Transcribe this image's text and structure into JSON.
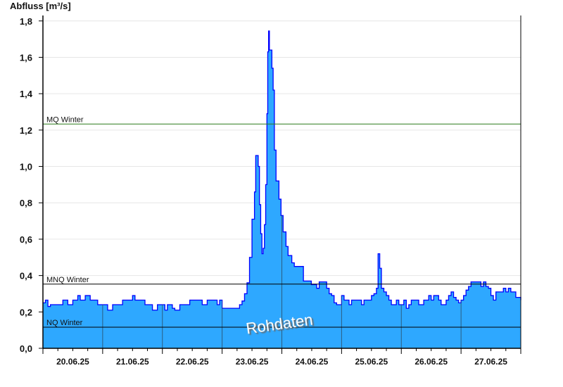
{
  "chart_data": {
    "type": "area",
    "step": true,
    "ylabel": "Abfluss [m³/s]",
    "ylim": [
      0,
      1.83
    ],
    "yticks": [
      "0,0",
      "0,2",
      "0,4",
      "0,6",
      "0,8",
      "1,0",
      "1,2",
      "1,4",
      "1,6",
      "1,8"
    ],
    "ytick_values": [
      0,
      0.2,
      0.4,
      0.6,
      0.8,
      1.0,
      1.2,
      1.4,
      1.6,
      1.8
    ],
    "xlim": [
      "2025-06-20T00:00",
      "2025-06-28T00:00"
    ],
    "xtick_labels": [
      "20.06.25",
      "21.06.25",
      "22.06.25",
      "23.06.25",
      "24.06.25",
      "25.06.25",
      "26.06.25",
      "27.06.25"
    ],
    "grid": true,
    "fill_color": "#2ea8ff",
    "line_color": "#0000ff",
    "watermark": "Rohdaten",
    "reference_lines": [
      {
        "label": "MQ Winter",
        "value": 1.233,
        "color": "#2a7a1a"
      },
      {
        "label": "MNQ Winter",
        "value": 0.353,
        "color": "#000000"
      },
      {
        "label": "NQ Winter",
        "value": 0.116,
        "color": "#000000"
      }
    ],
    "points": [
      [
        "2025-06-20T00:00",
        0.25
      ],
      [
        "2025-06-20T01:00",
        0.265
      ],
      [
        "2025-06-20T02:00",
        0.23
      ],
      [
        "2025-06-20T03:00",
        0.24
      ],
      [
        "2025-06-20T06:00",
        0.24
      ],
      [
        "2025-06-20T08:00",
        0.265
      ],
      [
        "2025-06-20T10:00",
        0.24
      ],
      [
        "2025-06-20T12:00",
        0.265
      ],
      [
        "2025-06-20T14:00",
        0.29
      ],
      [
        "2025-06-20T15:00",
        0.265
      ],
      [
        "2025-06-20T17:00",
        0.29
      ],
      [
        "2025-06-20T19:00",
        0.265
      ],
      [
        "2025-06-20T22:00",
        0.24
      ],
      [
        "2025-06-21T01:00",
        0.24
      ],
      [
        "2025-06-21T02:00",
        0.21
      ],
      [
        "2025-06-21T04:00",
        0.24
      ],
      [
        "2025-06-21T08:00",
        0.265
      ],
      [
        "2025-06-21T12:00",
        0.29
      ],
      [
        "2025-06-21T13:00",
        0.265
      ],
      [
        "2025-06-21T17:00",
        0.24
      ],
      [
        "2025-06-21T20:00",
        0.21
      ],
      [
        "2025-06-21T22:00",
        0.24
      ],
      [
        "2025-06-22T01:00",
        0.21
      ],
      [
        "2025-06-22T02:00",
        0.24
      ],
      [
        "2025-06-22T04:00",
        0.22
      ],
      [
        "2025-06-22T05:00",
        0.21
      ],
      [
        "2025-06-22T07:00",
        0.24
      ],
      [
        "2025-06-22T11:00",
        0.265
      ],
      [
        "2025-06-22T16:00",
        0.24
      ],
      [
        "2025-06-22T18:00",
        0.265
      ],
      [
        "2025-06-22T22:00",
        0.24
      ],
      [
        "2025-06-22T23:00",
        0.265
      ],
      [
        "2025-06-23T00:00",
        0.22
      ],
      [
        "2025-06-23T07:00",
        0.24
      ],
      [
        "2025-06-23T08:00",
        0.26
      ],
      [
        "2025-06-23T09:00",
        0.3
      ],
      [
        "2025-06-23T10:00",
        0.36
      ],
      [
        "2025-06-23T11:00",
        0.5
      ],
      [
        "2025-06-23T12:00",
        0.71
      ],
      [
        "2025-06-23T13:00",
        0.86
      ],
      [
        "2025-06-23T13:30",
        1.06
      ],
      [
        "2025-06-23T14:30",
        1.0
      ],
      [
        "2025-06-23T15:00",
        0.79
      ],
      [
        "2025-06-23T15:30",
        0.63
      ],
      [
        "2025-06-23T16:00",
        0.52
      ],
      [
        "2025-06-23T16:30",
        0.55
      ],
      [
        "2025-06-23T17:00",
        0.68
      ],
      [
        "2025-06-23T17:30",
        0.9
      ],
      [
        "2025-06-23T18:00",
        1.29
      ],
      [
        "2025-06-23T18:20",
        1.63
      ],
      [
        "2025-06-23T18:40",
        1.745
      ],
      [
        "2025-06-23T19:00",
        1.64
      ],
      [
        "2025-06-23T20:00",
        1.54
      ],
      [
        "2025-06-23T20:30",
        1.42
      ],
      [
        "2025-06-23T21:00",
        1.09
      ],
      [
        "2025-06-23T21:40",
        0.92
      ],
      [
        "2025-06-23T22:50",
        0.82
      ],
      [
        "2025-06-23T23:40",
        0.73
      ],
      [
        "2025-06-24T00:30",
        0.64
      ],
      [
        "2025-06-24T01:40",
        0.56
      ],
      [
        "2025-06-24T02:30",
        0.51
      ],
      [
        "2025-06-24T04:00",
        0.47
      ],
      [
        "2025-06-24T05:00",
        0.45
      ],
      [
        "2025-06-24T08:40",
        0.37
      ],
      [
        "2025-06-24T11:50",
        0.35
      ],
      [
        "2025-06-24T14:00",
        0.33
      ],
      [
        "2025-06-24T15:00",
        0.365
      ],
      [
        "2025-06-24T18:00",
        0.33
      ],
      [
        "2025-06-24T19:00",
        0.3
      ],
      [
        "2025-06-24T20:00",
        0.29
      ],
      [
        "2025-06-24T21:00",
        0.25
      ],
      [
        "2025-06-24T22:00",
        0.24
      ],
      [
        "2025-06-25T00:00",
        0.29
      ],
      [
        "2025-06-25T01:00",
        0.265
      ],
      [
        "2025-06-25T03:00",
        0.24
      ],
      [
        "2025-06-25T04:00",
        0.265
      ],
      [
        "2025-06-25T08:00",
        0.24
      ],
      [
        "2025-06-25T09:00",
        0.265
      ],
      [
        "2025-06-25T12:00",
        0.29
      ],
      [
        "2025-06-25T13:00",
        0.3
      ],
      [
        "2025-06-25T14:00",
        0.33
      ],
      [
        "2025-06-25T14:40",
        0.52
      ],
      [
        "2025-06-25T15:20",
        0.44
      ],
      [
        "2025-06-25T16:00",
        0.33
      ],
      [
        "2025-06-25T17:00",
        0.31
      ],
      [
        "2025-06-25T18:00",
        0.29
      ],
      [
        "2025-06-25T19:00",
        0.265
      ],
      [
        "2025-06-25T20:00",
        0.24
      ],
      [
        "2025-06-25T22:00",
        0.265
      ],
      [
        "2025-06-25T23:00",
        0.24
      ],
      [
        "2025-06-26T01:00",
        0.265
      ],
      [
        "2025-06-26T02:00",
        0.22
      ],
      [
        "2025-06-26T03:00",
        0.24
      ],
      [
        "2025-06-26T04:00",
        0.265
      ],
      [
        "2025-06-26T07:00",
        0.24
      ],
      [
        "2025-06-26T09:00",
        0.265
      ],
      [
        "2025-06-26T11:00",
        0.29
      ],
      [
        "2025-06-26T12:00",
        0.265
      ],
      [
        "2025-06-26T13:00",
        0.29
      ],
      [
        "2025-06-26T15:00",
        0.265
      ],
      [
        "2025-06-26T16:00",
        0.24
      ],
      [
        "2025-06-26T18:00",
        0.265
      ],
      [
        "2025-06-26T19:00",
        0.29
      ],
      [
        "2025-06-26T20:00",
        0.31
      ],
      [
        "2025-06-26T21:00",
        0.28
      ],
      [
        "2025-06-26T22:00",
        0.265
      ],
      [
        "2025-06-26T23:00",
        0.25
      ],
      [
        "2025-06-27T00:00",
        0.265
      ],
      [
        "2025-06-27T01:00",
        0.29
      ],
      [
        "2025-06-27T02:00",
        0.32
      ],
      [
        "2025-06-27T03:00",
        0.34
      ],
      [
        "2025-06-27T04:00",
        0.365
      ],
      [
        "2025-06-27T08:00",
        0.34
      ],
      [
        "2025-06-27T09:00",
        0.365
      ],
      [
        "2025-06-27T10:00",
        0.34
      ],
      [
        "2025-06-27T11:00",
        0.33
      ],
      [
        "2025-06-27T12:00",
        0.29
      ],
      [
        "2025-06-27T13:00",
        0.265
      ],
      [
        "2025-06-27T14:00",
        0.31
      ],
      [
        "2025-06-27T17:00",
        0.33
      ],
      [
        "2025-06-27T18:00",
        0.31
      ],
      [
        "2025-06-27T19:00",
        0.33
      ],
      [
        "2025-06-27T20:00",
        0.31
      ],
      [
        "2025-06-27T22:00",
        0.28
      ],
      [
        "2025-06-28T00:00",
        0.265
      ]
    ]
  }
}
